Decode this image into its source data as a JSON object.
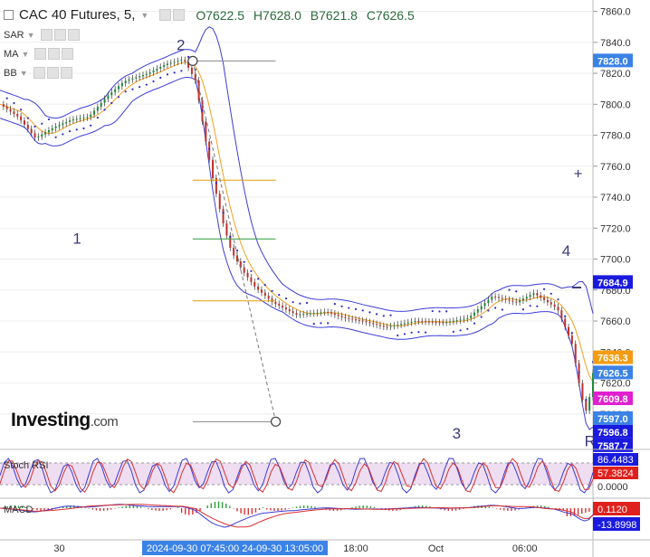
{
  "header": {
    "symbol": "CAC 40 Futures, 5,",
    "open": "O7622.5",
    "high": "H7628.0",
    "low": "B7621.8",
    "close": "C7626.5"
  },
  "indicators": [
    {
      "label": "SAR"
    },
    {
      "label": "MA"
    },
    {
      "label": "BB"
    }
  ],
  "watermark": {
    "brand": "Investing",
    "suffix": ".com"
  },
  "colors": {
    "price": "#222222",
    "bollinger": "#3d3dd6",
    "sar": "#2a2ad0",
    "ma": "#f0a020",
    "fib_mid": "#2e9e3e",
    "fib_outer": "#e0a000",
    "grid": "#eeeeee",
    "rsi_band": "#e4c8ea"
  },
  "chart_data": {
    "type": "line",
    "title": "CAC 40 Futures, 5",
    "ylim": [
      7580,
      7865
    ],
    "y_ticks": [
      "7860.0",
      "7840.0",
      "7820.0",
      "7800.0",
      "7780.0",
      "7760.0",
      "7740.0",
      "7720.0",
      "7700.0",
      "7680.0",
      "7660.0",
      "7640.0",
      "7620.0",
      "7600.0"
    ],
    "x_ticks": [
      {
        "label": "30",
        "t": 0.1
      },
      {
        "label": "18:00",
        "t": 0.6
      },
      {
        "label": "Oct",
        "t": 0.735
      },
      {
        "label": "06:00",
        "t": 0.885
      }
    ],
    "x_range_label": "2024-09-30 07:45:00  24-09-30 13:05:00",
    "price_series": [
      {
        "t": 0,
        "y": 7800
      },
      {
        "t": 0.03,
        "y": 7792
      },
      {
        "t": 0.06,
        "y": 7778
      },
      {
        "t": 0.09,
        "y": 7785
      },
      {
        "t": 0.12,
        "y": 7790
      },
      {
        "t": 0.15,
        "y": 7792
      },
      {
        "t": 0.18,
        "y": 7805
      },
      {
        "t": 0.21,
        "y": 7815
      },
      {
        "t": 0.25,
        "y": 7820
      },
      {
        "t": 0.28,
        "y": 7826
      },
      {
        "t": 0.31,
        "y": 7829
      },
      {
        "t": 0.33,
        "y": 7815
      },
      {
        "t": 0.345,
        "y": 7780
      },
      {
        "t": 0.36,
        "y": 7750
      },
      {
        "t": 0.375,
        "y": 7725
      },
      {
        "t": 0.39,
        "y": 7705
      },
      {
        "t": 0.41,
        "y": 7692
      },
      {
        "t": 0.43,
        "y": 7682
      },
      {
        "t": 0.46,
        "y": 7672
      },
      {
        "t": 0.5,
        "y": 7664
      },
      {
        "t": 0.55,
        "y": 7666
      },
      {
        "t": 0.58,
        "y": 7662
      },
      {
        "t": 0.61,
        "y": 7660
      },
      {
        "t": 0.65,
        "y": 7656
      },
      {
        "t": 0.7,
        "y": 7660
      },
      {
        "t": 0.75,
        "y": 7659
      },
      {
        "t": 0.79,
        "y": 7662
      },
      {
        "t": 0.83,
        "y": 7676
      },
      {
        "t": 0.87,
        "y": 7672
      },
      {
        "t": 0.9,
        "y": 7678
      },
      {
        "t": 0.94,
        "y": 7668
      },
      {
        "t": 0.965,
        "y": 7645
      },
      {
        "t": 0.98,
        "y": 7612
      },
      {
        "t": 0.99,
        "y": 7600
      },
      {
        "t": 1.0,
        "y": 7626.5
      }
    ],
    "fib_levels": [
      {
        "y": 7828,
        "color": "#888888"
      },
      {
        "y": 7751,
        "color": "#e0a000"
      },
      {
        "y": 7713,
        "color": "#2e9e3e"
      },
      {
        "y": 7673,
        "color": "#e0a000"
      },
      {
        "y": 7595,
        "color": "#888888"
      }
    ],
    "wave_labels": [
      {
        "text": "1",
        "t": 0.13,
        "y": 7710
      },
      {
        "text": "2",
        "t": 0.305,
        "y": 7835
      },
      {
        "text": "3",
        "t": 0.77,
        "y": 7584
      },
      {
        "text": "4",
        "t": 0.955,
        "y": 7702
      },
      {
        "text": "+",
        "t": 0.975,
        "y": 7752
      },
      {
        "text": "R",
        "t": 0.995,
        "y": 7579
      }
    ],
    "price_labels": [
      {
        "text": "7828.0",
        "y": 7828.0,
        "bg": "#3b82e6"
      },
      {
        "text": "7684.9",
        "y": 7684.9,
        "bg": "#1a1adf"
      },
      {
        "text": "7636.3",
        "y": 7636.3,
        "bg": "#f39c12"
      },
      {
        "text": "7626.5",
        "y": 7626.5,
        "bg": "#3b82e6"
      },
      {
        "text": "7609.8",
        "y": 7609.8,
        "bg": "#e020d0"
      },
      {
        "text": "7597.0",
        "y": 7597.0,
        "bg": "#3b82e6"
      },
      {
        "text": "7596.8",
        "y": 7596.8,
        "bg": "#1a1adf"
      },
      {
        "text": "7587.7",
        "y": 7587.7,
        "bg": "#1a1adf"
      }
    ],
    "stoch_rsi": {
      "label": "Stoch RSI",
      "values": [
        {
          "text": "86.4483",
          "bg": "#1a1adf"
        },
        {
          "text": "57.3824",
          "bg": "#e0201c"
        },
        {
          "text": "0.0000",
          "bg": "none"
        }
      ]
    },
    "macd": {
      "label": "MACD",
      "values": [
        {
          "text": "0.1120",
          "bg": "#e0201c"
        },
        {
          "text": "-13.8998",
          "bg": "#1a1adf"
        }
      ]
    }
  }
}
